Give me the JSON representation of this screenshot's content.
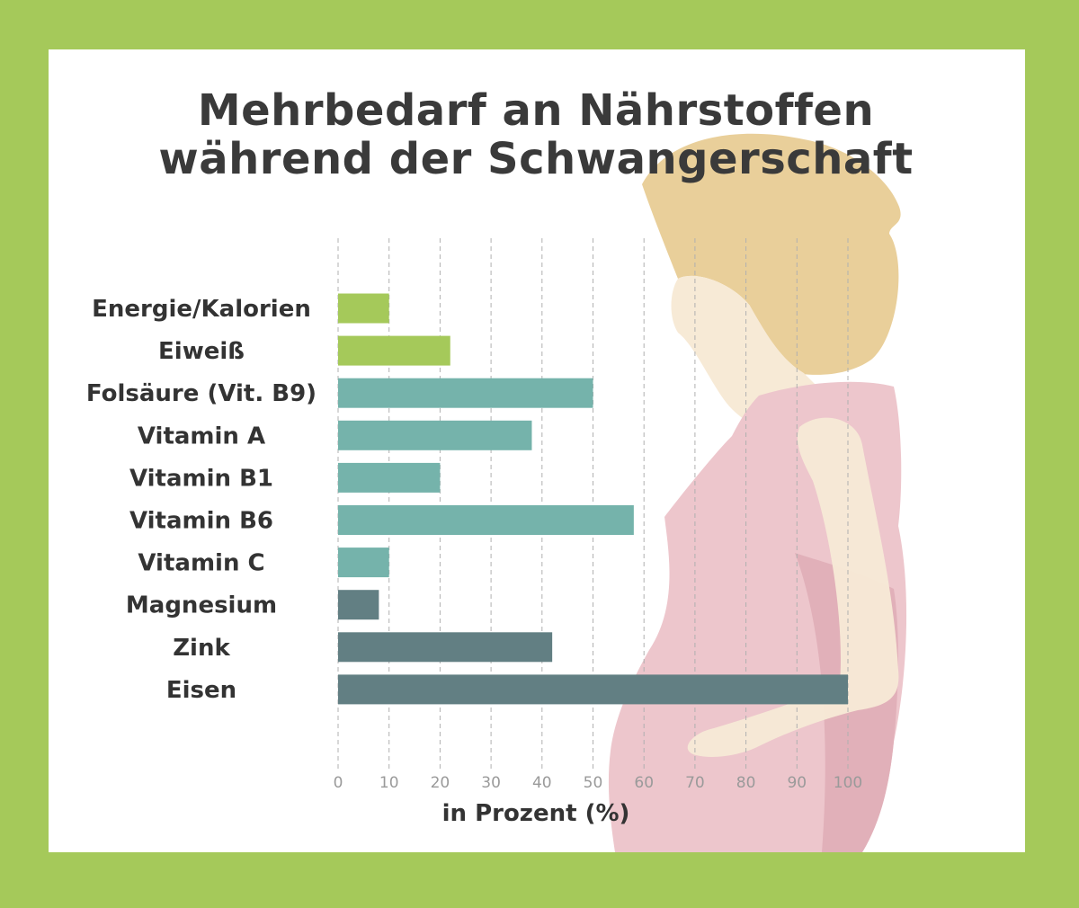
{
  "colors": {
    "frame": "#a5c95a",
    "background": "#ffffff",
    "title": "#3a3a3a",
    "hair": "#e9cf9a",
    "skin": "#f7ead6",
    "dress": "#edc6cc",
    "dress_shade": "#e1b0b9",
    "grid": "#b0b0b0"
  },
  "chart_data": {
    "type": "bar",
    "orientation": "horizontal",
    "title": [
      "Mehrbedarf an Nährstoffen",
      "während der Schwangerschaft"
    ],
    "categories": [
      "Energie/Kalorien",
      "Eiweiß",
      "Folsäure (Vit. B9)",
      "Vitamin A",
      "Vitamin B1",
      "Vitamin B6",
      "Vitamin C",
      "Magnesium",
      "Zink",
      "Eisen"
    ],
    "values": [
      10,
      22,
      50,
      38,
      20,
      58,
      10,
      8,
      42,
      100
    ],
    "bar_colors": [
      "#a5c95a",
      "#a5c95a",
      "#75b3ab",
      "#75b3ab",
      "#75b3ab",
      "#75b3ab",
      "#75b3ab",
      "#627f83",
      "#627f83",
      "#627f83"
    ],
    "xlabel": "in Prozent (%)",
    "xlim": [
      0,
      100
    ],
    "xticks": [
      0,
      10,
      20,
      30,
      40,
      50,
      60,
      70,
      80,
      90,
      100
    ],
    "grid": "vertical dashed"
  }
}
